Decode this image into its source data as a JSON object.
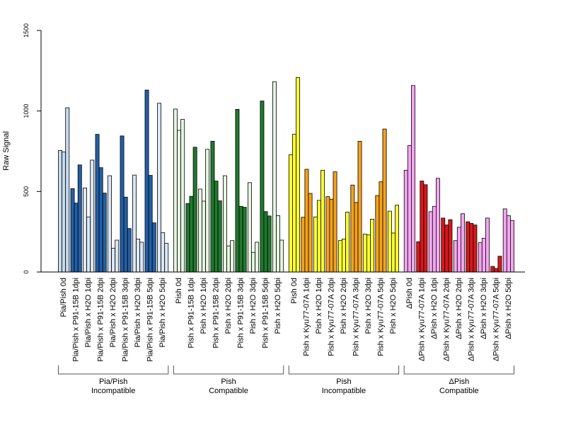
{
  "chart_data": {
    "type": "bar",
    "ylabel": "Raw Signal",
    "ylim": [
      0,
      1500
    ],
    "yticks": [
      "0",
      "500",
      "1000",
      "1500"
    ],
    "grid": false,
    "groups": [
      {
        "label": "Pia/Pish\nIncompatible",
        "categories": [
          {
            "label": "Pia/Pish 0d",
            "values": [
              755,
              745,
              1020
            ],
            "colors": [
              "#c6dbef",
              "#c6dbef",
              "#c6dbef"
            ]
          },
          {
            "label": "Pia/Pish x P91-15B 1dpi",
            "values": [
              518,
              428,
              665
            ],
            "colors": [
              "#2260a8",
              "#2260a8",
              "#2260a8"
            ]
          },
          {
            "label": "Pia/Pish x H2O 1dpi",
            "values": [
              522,
              342,
              695
            ],
            "colors": [
              "#dbe7f5",
              "#dbe7f5",
              "#dbe7f5"
            ]
          },
          {
            "label": "Pia/Pish x P91-15B 2dpi",
            "values": [
              855,
              648,
              490
            ],
            "colors": [
              "#2260a8",
              "#2260a8",
              "#2260a8"
            ]
          },
          {
            "label": "Pia/Pish x H2O 2dpi",
            "values": [
              598,
              148,
              198
            ],
            "colors": [
              "#dbe7f5",
              "#dbe7f5",
              "#dbe7f5"
            ]
          },
          {
            "label": "Pia/Pish x P91-15B 3dpi",
            "values": [
              845,
              465,
              270
            ],
            "colors": [
              "#2260a8",
              "#2260a8",
              "#2260a8"
            ]
          },
          {
            "label": "Pia/Pish x H2O 3dpi",
            "values": [
              602,
              205,
              185
            ],
            "colors": [
              "#dbe7f5",
              "#dbe7f5",
              "#dbe7f5"
            ]
          },
          {
            "label": "Pia/Pish x P91-15B 5dpi",
            "values": [
              1130,
              600,
              305
            ],
            "colors": [
              "#2260a8",
              "#2260a8",
              "#2260a8"
            ]
          },
          {
            "label": "Pia/Pish x H2O 5dpi",
            "values": [
              1048,
              245,
              178
            ],
            "colors": [
              "#dbe7f5",
              "#dbe7f5",
              "#dbe7f5"
            ]
          }
        ]
      },
      {
        "label": "Pish\nCompatible",
        "categories": [
          {
            "label": "Pish 0d",
            "values": [
              1012,
              880,
              948
            ],
            "colors": [
              "#e5f5e0",
              "#e5f5e0",
              "#e5f5e0"
            ]
          },
          {
            "label": "Pish x P91-15B 1dpi",
            "values": [
              425,
              470,
              775
            ],
            "colors": [
              "#1f7a2e",
              "#1f7a2e",
              "#1f7a2e"
            ]
          },
          {
            "label": "Pish x H2O 1dpi",
            "values": [
              515,
              440,
              762
            ],
            "colors": [
              "#e5f5e0",
              "#e5f5e0",
              "#e5f5e0"
            ]
          },
          {
            "label": "Pish x P91-15B 2dpi",
            "values": [
              812,
              565,
              442
            ],
            "colors": [
              "#1f7a2e",
              "#1f7a2e",
              "#1f7a2e"
            ]
          },
          {
            "label": "Pish x H2O 2dpi",
            "values": [
              598,
              162,
              195
            ],
            "colors": [
              "#e5f5e0",
              "#e5f5e0",
              "#e5f5e0"
            ]
          },
          {
            "label": "Pish x P91-15B 3dpi",
            "values": [
              1010,
              408,
              402
            ],
            "colors": [
              "#1f7a2e",
              "#1f7a2e",
              "#1f7a2e"
            ]
          },
          {
            "label": "Pish x H2O 3dpi",
            "values": [
              555,
              122,
              185
            ],
            "colors": [
              "#e5f5e0",
              "#e5f5e0",
              "#e5f5e0"
            ]
          },
          {
            "label": "Pish x P91-15B 5dpi",
            "values": [
              1062,
              375,
              348
            ],
            "colors": [
              "#1f7a2e",
              "#1f7a2e",
              "#1f7a2e"
            ]
          },
          {
            "label": "Pish x H2O 5dpi",
            "values": [
              1182,
              350,
              198
            ],
            "colors": [
              "#e5f5e0",
              "#e5f5e0",
              "#e5f5e0"
            ]
          }
        ]
      },
      {
        "label": "Pish\nIncompatible",
        "categories": [
          {
            "label": "Pish 0d",
            "values": [
              728,
              855,
              1208
            ],
            "colors": [
              "#ffff33",
              "#ffff33",
              "#ffff33"
            ]
          },
          {
            "label": "Pish x Kyu77-07A 1dpi",
            "values": [
              340,
              638,
              488
            ],
            "colors": [
              "#f5a21b",
              "#f5a21b",
              "#f5a21b"
            ]
          },
          {
            "label": "Pish x H2O 1dpi",
            "values": [
              342,
              445,
              632
            ],
            "colors": [
              "#ffff33",
              "#ffff33",
              "#ffff33"
            ]
          },
          {
            "label": "Pish x Kyu77-07A 2dpi",
            "values": [
              468,
              452,
              622
            ],
            "colors": [
              "#f5a21b",
              "#f5a21b",
              "#f5a21b"
            ]
          },
          {
            "label": "Pish x H2O 2dpi",
            "values": [
              195,
              205,
              372
            ],
            "colors": [
              "#ffff33",
              "#ffff33",
              "#ffff33"
            ]
          },
          {
            "label": "Pish x Kyu77-07A 3dpi",
            "values": [
              540,
              432,
              812
            ],
            "colors": [
              "#f5a21b",
              "#f5a21b",
              "#f5a21b"
            ]
          },
          {
            "label": "Pish x H2O 3dpi",
            "values": [
              235,
              230,
              328
            ],
            "colors": [
              "#ffff33",
              "#ffff33",
              "#ffff33"
            ]
          },
          {
            "label": "Pish x Kyu77-07A 5dpi",
            "values": [
              475,
              560,
              888
            ],
            "colors": [
              "#f5a21b",
              "#f5a21b",
              "#f5a21b"
            ]
          },
          {
            "label": "Pish x H2O 5dpi",
            "values": [
              378,
              242,
              415
            ],
            "colors": [
              "#ffff33",
              "#ffff33",
              "#ffff33"
            ]
          }
        ]
      },
      {
        "label": "ΔPish\nCompatible",
        "categories": [
          {
            "label": "ΔPish 0d",
            "values": [
              632,
              785,
              1158
            ],
            "colors": [
              "#f4a6f0",
              "#f4a6f0",
              "#f4a6f0"
            ]
          },
          {
            "label": "ΔPish x Kyu77-07A 1dpi",
            "values": [
              188,
              565,
              542
            ],
            "colors": [
              "#d7191c",
              "#d7191c",
              "#d7191c"
            ]
          },
          {
            "label": "ΔPish x H2O 1dpi",
            "values": [
              375,
              408,
              582
            ],
            "colors": [
              "#f4a6f0",
              "#f4a6f0",
              "#f4a6f0"
            ]
          },
          {
            "label": "ΔPish x Kyu77-07A 2dpi",
            "values": [
              335,
              292,
              325
            ],
            "colors": [
              "#d7191c",
              "#d7191c",
              "#d7191c"
            ]
          },
          {
            "label": "ΔPish x H2O 2dpi",
            "values": [
              195,
              278,
              362
            ],
            "colors": [
              "#f4a6f0",
              "#f4a6f0",
              "#f4a6f0"
            ]
          },
          {
            "label": "ΔPish x Kyu77-07A 3dpi",
            "values": [
              312,
              302,
              292
            ],
            "colors": [
              "#d7191c",
              "#d7191c",
              "#d7191c"
            ]
          },
          {
            "label": "ΔPish x H2O 3dpi",
            "values": [
              182,
              210,
              335
            ],
            "colors": [
              "#f4a6f0",
              "#f4a6f0",
              "#f4a6f0"
            ]
          },
          {
            "label": "ΔPish x Kyu77-07A 5dpi",
            "values": [
              35,
              22,
              98
            ],
            "colors": [
              "#d7191c",
              "#d7191c",
              "#d7191c"
            ]
          },
          {
            "label": "ΔPish x H2O 5dpi",
            "values": [
              392,
              350,
              320
            ],
            "colors": [
              "#f4a6f0",
              "#f4a6f0",
              "#f4a6f0"
            ]
          }
        ]
      }
    ]
  }
}
